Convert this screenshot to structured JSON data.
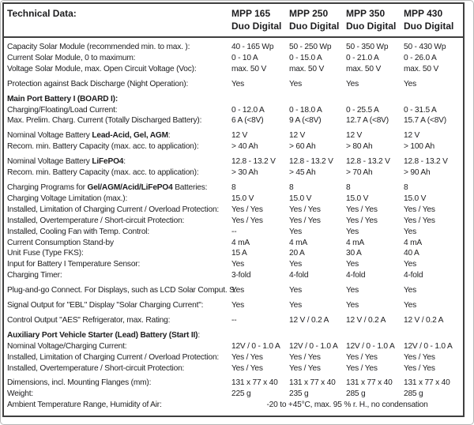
{
  "title": "Technical Data:",
  "products": [
    {
      "model": "MPP 165",
      "variant": "Duo Digital"
    },
    {
      "model": "MPP 250",
      "variant": "Duo Digital"
    },
    {
      "model": "MPP 350",
      "variant": "Duo Digital"
    },
    {
      "model": "MPP 430",
      "variant": "Duo Digital"
    }
  ],
  "colors": {
    "table_border": "#3f3f3f",
    "text": "#1d1d1f",
    "page_border": "#b6b6b6"
  },
  "groups": [
    {
      "rows": [
        {
          "label": "Capacity Solar Module (recommended min. to max. ):",
          "values": [
            "40 - 165 Wp",
            "50 - 250 Wp",
            "50 - 350 Wp",
            "50 - 430 Wp"
          ]
        },
        {
          "label": "Current Solar Module, 0 to maximum:",
          "values": [
            "0 - 10 A",
            "0 - 15.0 A",
            "0 - 21.0 A",
            "0 - 26.0 A"
          ]
        },
        {
          "label": "Voltage Solar Module, max. Open Circuit Voltage (Voc):",
          "values": [
            "max. 50 V",
            "max. 50 V",
            "max. 50 V",
            "max. 50 V"
          ]
        }
      ]
    },
    {
      "rows": [
        {
          "label": "Protection against Back Discharge (Night Operation):",
          "values": [
            "Yes",
            "Yes",
            "Yes",
            "Yes"
          ]
        }
      ]
    },
    {
      "rows": [
        {
          "label": "Main Port Battery I (BOARD I):",
          "bold": true,
          "values": [
            "",
            "",
            "",
            ""
          ]
        },
        {
          "label": "Charging/Floating/Load Current:",
          "values": [
            "0 - 12.0 A",
            "0 - 18.0 A",
            "0 - 25.5 A",
            "0 - 31.5 A"
          ]
        },
        {
          "label": "Max. Prelim. Charg. Current (Totally Discharged Battery):",
          "values": [
            "6 A (<8V)",
            "9 A (<8V)",
            "12.7 A (<8V)",
            "15.7 A (<8V)"
          ]
        }
      ]
    },
    {
      "rows": [
        {
          "label": "Nominal Voltage Battery Lead-Acid, Gel, AGM:",
          "bold_part": "Lead-Acid, Gel, AGM",
          "values": [
            "12 V",
            "12 V",
            "12 V",
            "12 V"
          ]
        },
        {
          "label": "Recom. min. Battery Capacity (max. acc. to application):",
          "values": [
            "> 40 Ah",
            "> 60 Ah",
            "> 80 Ah",
            "> 100 Ah"
          ]
        }
      ]
    },
    {
      "rows": [
        {
          "label": "Nominal Voltage Battery LiFePO4:",
          "bold_part": "LiFePO4",
          "values": [
            "12.8 - 13.2 V",
            "12.8 - 13.2 V",
            "12.8 - 13.2 V",
            "12.8 - 13.2 V"
          ]
        },
        {
          "label": "Recom. min. Battery Capacity (max. acc. to application):",
          "values": [
            "> 30 Ah",
            "> 45 Ah",
            "> 70 Ah",
            "> 90 Ah"
          ]
        }
      ]
    },
    {
      "rows": [
        {
          "label": "Charging Programs for Gel/AGM/Acid/LiFePO4 Batteries:",
          "bold_part": "Gel/AGM/Acid/LiFePO4",
          "values": [
            "8",
            "8",
            "8",
            "8"
          ]
        },
        {
          "label": "Charging Voltage Limitation (max.):",
          "values": [
            "15.0 V",
            "15.0 V",
            "15.0 V",
            "15.0 V"
          ]
        },
        {
          "label": "Installed, Limitation of Charging Current / Overload Protection:",
          "values": [
            "Yes / Yes",
            "Yes / Yes",
            "Yes / Yes",
            "Yes / Yes"
          ]
        },
        {
          "label": "Installed, Overtemperature / Short-circuit Protection:",
          "values": [
            "Yes / Yes",
            "Yes / Yes",
            "Yes / Yes",
            "Yes / Yes"
          ]
        },
        {
          "label": "Installed, Cooling Fan with Temp. Control:",
          "values": [
            "--",
            "Yes",
            "Yes",
            "Yes"
          ]
        },
        {
          "label": "Current Consumption Stand-by",
          "values": [
            "4 mA",
            "4 mA",
            "4 mA",
            "4 mA"
          ]
        },
        {
          "label": "Unit Fuse (Type FKS):",
          "values": [
            "15 A",
            "20 A",
            "30 A",
            "40 A"
          ]
        },
        {
          "label": "Input for Battery I Temperature Sensor:",
          "values": [
            "Yes",
            "Yes",
            "Yes",
            "Yes"
          ]
        },
        {
          "label": "Charging Timer:",
          "values": [
            "3-fold",
            "4-fold",
            "4-fold",
            "4-fold"
          ]
        }
      ]
    },
    {
      "rows": [
        {
          "label": "Plug-and-go Connect. For Displays, such as LCD Solar Comput. S:",
          "values": [
            "Yes",
            "Yes",
            "Yes",
            "Yes"
          ]
        }
      ]
    },
    {
      "rows": [
        {
          "label": "Signal Output for \"EBL\" Display \"Solar Charging Current\":",
          "values": [
            "Yes",
            "Yes",
            "Yes",
            "Yes"
          ]
        }
      ]
    },
    {
      "rows": [
        {
          "label": "Control Output \"AES\" Refrigerator, max. Rating:",
          "values": [
            "--",
            "12 V / 0.2 A",
            "12 V / 0.2 A",
            "12 V / 0.2 A"
          ]
        }
      ]
    },
    {
      "rows": [
        {
          "label": "Auxiliary Port Vehicle Starter (Lead) Battery (Start II):",
          "bold_part": "Auxiliary Port Vehicle Starter (Lead) Battery (Start II)",
          "values": [
            "",
            "",
            "",
            ""
          ]
        },
        {
          "label": "Nominal Voltage/Charging Current:",
          "values": [
            "12V / 0 - 1.0 A",
            "12V / 0 - 1.0 A",
            "12V / 0 - 1.0 A",
            "12V / 0 - 1.0 A"
          ]
        },
        {
          "label": "Installed, Limitation of Charging Current / Overload Protection:",
          "values": [
            "Yes / Yes",
            "Yes / Yes",
            "Yes / Yes",
            "Yes / Yes"
          ]
        },
        {
          "label": "Installed, Overtemperature / Short-circuit Protection:",
          "values": [
            "Yes / Yes",
            "Yes / Yes",
            "Yes / Yes",
            "Yes / Yes"
          ]
        }
      ]
    },
    {
      "rows": [
        {
          "label": "Dimensions, incl. Mounting Flanges (mm):",
          "values": [
            "131 x 77 x 40",
            "131 x 77 x 40",
            "131 x 77 x 40",
            "131 x 77 x 40"
          ]
        },
        {
          "label": "Weight:",
          "values": [
            "225 g",
            "235 g",
            "285 g",
            "285 g"
          ]
        },
        {
          "label": "Ambient Temperature Range, Humidity of Air:",
          "span_value": "-20 to +45°C, max. 95 % r. H., no condensation"
        }
      ]
    }
  ]
}
